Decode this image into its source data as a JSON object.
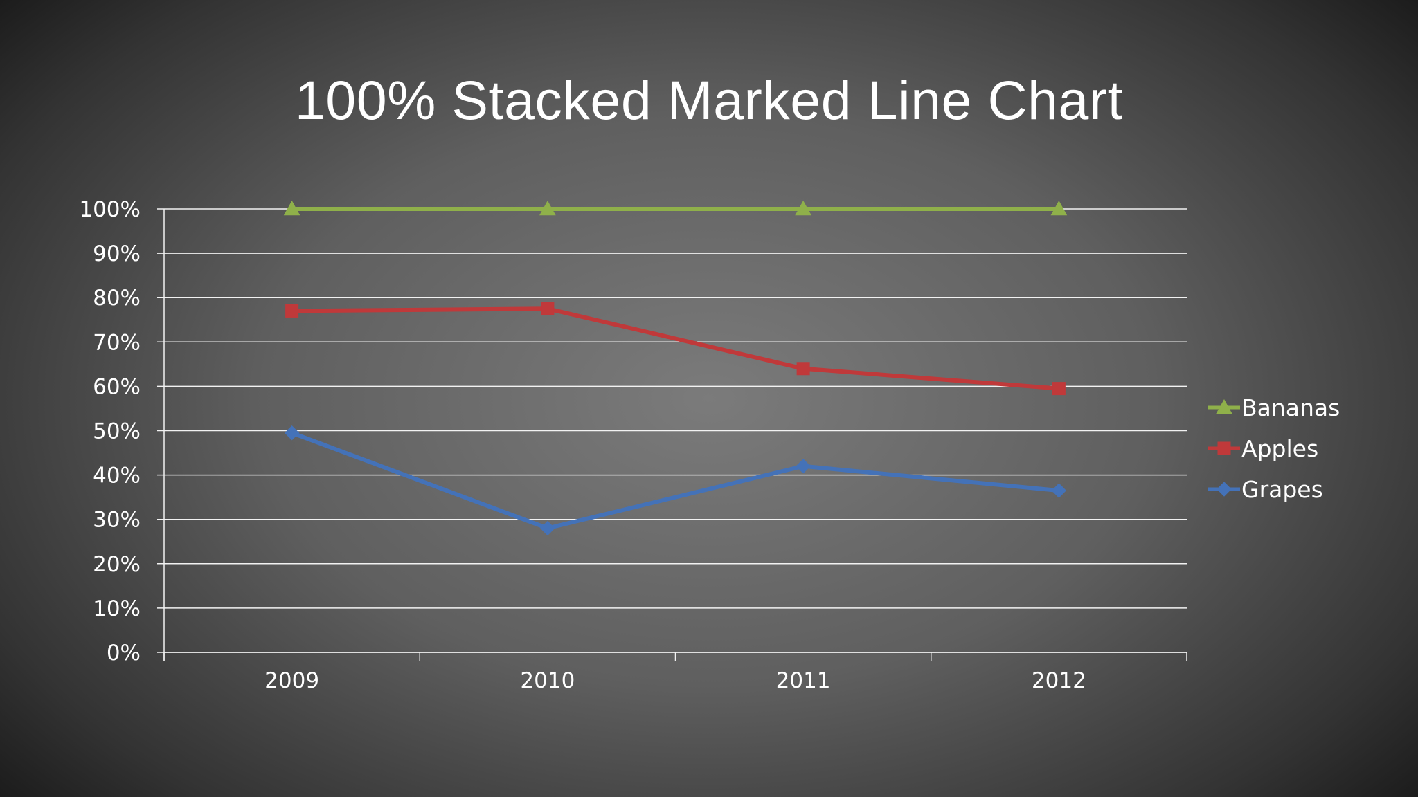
{
  "slide": {
    "title": "100% Stacked Marked Line Chart"
  },
  "chart_data": {
    "type": "line",
    "subtype": "100% stacked with markers",
    "title": "100% Stacked Marked Line Chart",
    "categories": [
      "2009",
      "2010",
      "2011",
      "2012"
    ],
    "y_ticks": [
      "0%",
      "10%",
      "20%",
      "30%",
      "40%",
      "50%",
      "60%",
      "70%",
      "80%",
      "90%",
      "100%"
    ],
    "ylim": [
      0,
      100
    ],
    "grid": true,
    "legend_position": "right",
    "series": [
      {
        "name": "Bananas",
        "color": "#8fb04a",
        "marker": "triangle",
        "values": [
          100,
          100,
          100,
          100
        ]
      },
      {
        "name": "Apples",
        "color": "#c0393a",
        "marker": "square",
        "values": [
          77,
          77.5,
          64,
          59.5
        ]
      },
      {
        "name": "Grapes",
        "color": "#4472b8",
        "marker": "diamond",
        "values": [
          49.5,
          28,
          42,
          36.5
        ]
      }
    ]
  }
}
